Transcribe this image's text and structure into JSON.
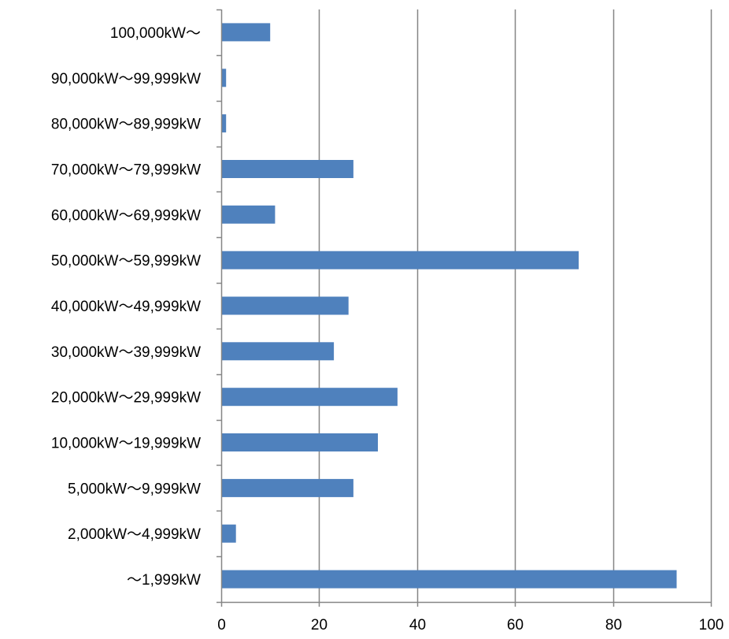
{
  "chart_data": {
    "type": "bar",
    "orientation": "horizontal",
    "categories": [
      "100,000kW～",
      "90,000kW～99,999kW",
      "80,000kW～89,999kW",
      "70,000kW～79,999kW",
      "60,000kW～69,999kW",
      "50,000kW～59,999kW",
      "40,000kW～49,999kW",
      "30,000kW～39,999kW",
      "20,000kW～29,999kW",
      "10,000kW～19,999kW",
      "5,000kW～9,999kW",
      "2,000kW～4,999kW",
      "～1,999kW"
    ],
    "values": [
      10,
      1,
      1,
      27,
      11,
      73,
      26,
      23,
      36,
      32,
      27,
      3,
      93
    ],
    "xlim": [
      0,
      100
    ],
    "xticks": [
      0,
      20,
      40,
      60,
      80,
      100
    ],
    "title": "",
    "xlabel": "",
    "ylabel": "",
    "grid": "vertical",
    "legend": "none",
    "bar_color": "#4F81BD",
    "grid_color": "#868686",
    "axis_color": "#868686"
  }
}
